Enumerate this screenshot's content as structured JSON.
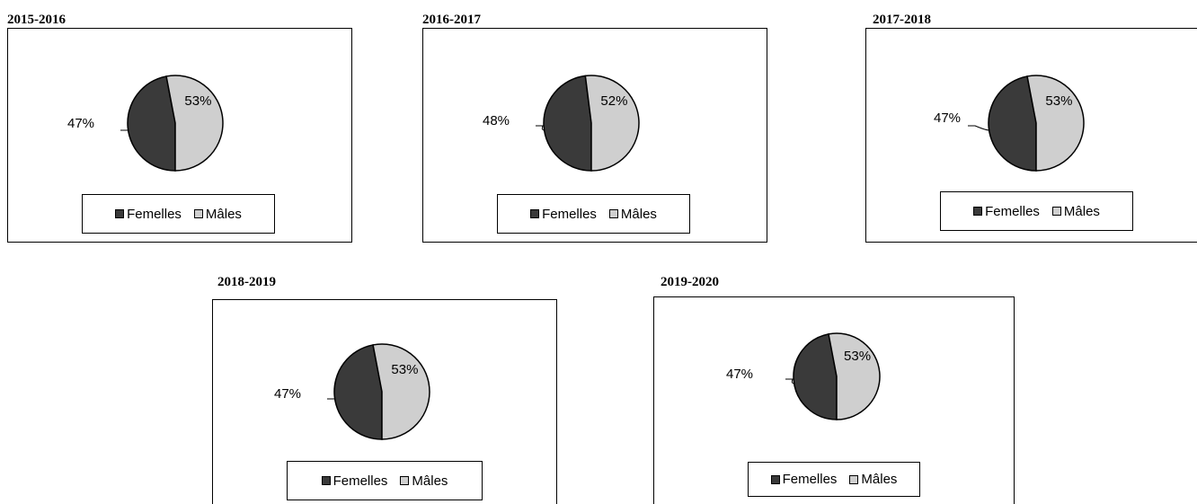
{
  "colors": {
    "femelles": "#3a3a3a",
    "males": "#cfcfcf"
  },
  "legend": {
    "femelles": "Femelles",
    "males": "Mâles"
  },
  "chart_data": [
    {
      "type": "pie",
      "title": "2015-2016",
      "categories": [
        "Femelles",
        "Mâles"
      ],
      "values": [
        47,
        53
      ],
      "labels": [
        "47%",
        "53%"
      ],
      "legend_position": "bottom"
    },
    {
      "type": "pie",
      "title": "2016-2017",
      "categories": [
        "Femelles",
        "Mâles"
      ],
      "values": [
        48,
        52
      ],
      "labels": [
        "48%",
        "52%"
      ],
      "legend_position": "bottom"
    },
    {
      "type": "pie",
      "title": "2017-2018",
      "categories": [
        "Femelles",
        "Mâles"
      ],
      "values": [
        47,
        53
      ],
      "labels": [
        "47%",
        "53%"
      ],
      "legend_position": "bottom"
    },
    {
      "type": "pie",
      "title": "2018-2019",
      "categories": [
        "Femelles",
        "Mâles"
      ],
      "values": [
        47,
        53
      ],
      "labels": [
        "47%",
        "53%"
      ],
      "legend_position": "bottom"
    },
    {
      "type": "pie",
      "title": "2019-2020",
      "categories": [
        "Femelles",
        "Mâles"
      ],
      "values": [
        47,
        53
      ],
      "labels": [
        "47%",
        "53%"
      ],
      "legend_position": "bottom"
    }
  ]
}
